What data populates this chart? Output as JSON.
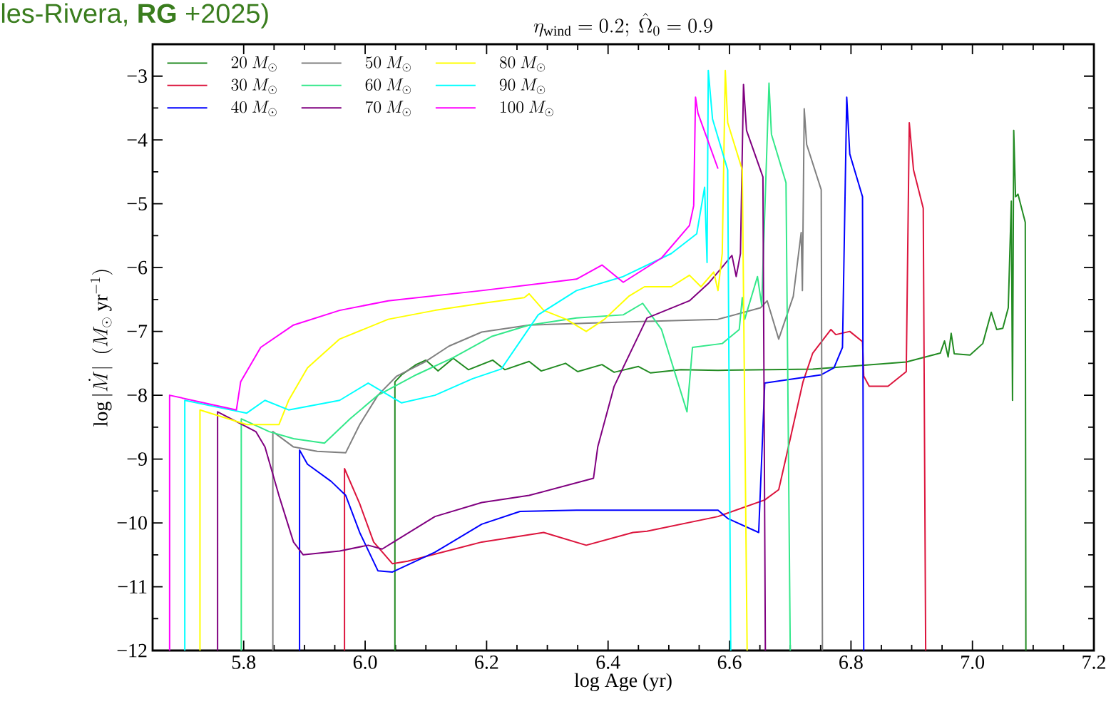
{
  "chart_data": {
    "type": "line",
    "title": "\\eta_{\\rm wind} = 0.2;\\ \\hat{\\Omega}_0 = 0.9",
    "xlabel": "log Age (yr)",
    "ylabel": "\\log|\\dot{M}|\\ \\ (M_\\odot\\ {\\rm yr}^{-1})",
    "annotations": [
      "les-Rivera, **RG** +2025)"
    ],
    "legend": "top left",
    "xlim": [
      5.65,
      7.2
    ],
    "ylim": [
      -12,
      -2.5
    ],
    "xticks": [
      {
        "value": 5.8,
        "label": "5.8"
      },
      {
        "value": 6,
        "label": "6.0"
      },
      {
        "value": 6.2,
        "label": "6.2"
      },
      {
        "value": 6.4,
        "label": "6.4"
      },
      {
        "value": 6.6,
        "label": "6.6"
      },
      {
        "value": 6.8,
        "label": "6.8"
      },
      {
        "value": 7,
        "label": "7.0"
      },
      {
        "value": 7.2,
        "label": "7.2"
      }
    ],
    "yticks": [
      {
        "value": -12,
        "label": "−12"
      },
      {
        "value": -11,
        "label": "−11"
      },
      {
        "value": -10,
        "label": "−10"
      },
      {
        "value": -9,
        "label": "−9"
      },
      {
        "value": -8,
        "label": "−8"
      },
      {
        "value": -7,
        "label": "−7"
      },
      {
        "value": -6,
        "label": "−6"
      },
      {
        "value": -5,
        "label": "−5"
      },
      {
        "value": -4,
        "label": "−4"
      },
      {
        "value": -3,
        "label": "−3"
      }
    ],
    "series": [
      {
        "name": "20\\ M_\\odot",
        "color": "#228b22",
        "x": [
          6.049,
          6.049,
          6.06,
          6.084,
          6.1,
          6.12,
          6.145,
          6.17,
          6.21,
          6.23,
          6.27,
          6.29,
          6.33,
          6.35,
          6.39,
          6.41,
          6.45,
          6.47,
          6.52,
          6.581,
          6.737,
          6.891,
          6.947,
          6.954,
          6.96,
          6.965,
          6.97,
          6.996,
          7.017,
          7.031,
          7.04,
          7.05,
          7.059,
          7.064,
          7.066,
          7.068,
          7.071,
          7.075,
          7.087,
          7.088
        ],
        "values": [
          -12,
          -7.79,
          -7.68,
          -7.52,
          -7.45,
          -7.62,
          -7.42,
          -7.6,
          -7.45,
          -7.6,
          -7.47,
          -7.62,
          -7.5,
          -7.63,
          -7.52,
          -7.64,
          -7.55,
          -7.65,
          -7.6,
          -7.61,
          -7.59,
          -7.48,
          -7.34,
          -7.15,
          -7.4,
          -7.03,
          -7.35,
          -7.37,
          -7.19,
          -6.7,
          -6.97,
          -6.95,
          -6.63,
          -4.96,
          -8.08,
          -3.85,
          -4.89,
          -4.85,
          -5.29,
          -12
        ]
      },
      {
        "name": "30\\ M_\\odot",
        "color": "#dc143c",
        "x": [
          5.966,
          5.966,
          5.991,
          6.014,
          6.045,
          6.07,
          6.192,
          6.294,
          6.364,
          6.441,
          6.464,
          6.581,
          6.658,
          6.681,
          6.697,
          6.721,
          6.737,
          6.767,
          6.775,
          6.798,
          6.819,
          6.821,
          6.83,
          6.861,
          6.891,
          6.896,
          6.903,
          6.919,
          6.923
        ],
        "values": [
          -12,
          -9.15,
          -9.7,
          -10.3,
          -10.64,
          -10.6,
          -10.3,
          -10.15,
          -10.35,
          -10.15,
          -10.13,
          -9.9,
          -9.64,
          -9.48,
          -8.81,
          -7.79,
          -7.34,
          -6.97,
          -7.05,
          -7.0,
          -7.16,
          -7.7,
          -7.86,
          -7.86,
          -7.63,
          -3.73,
          -4.47,
          -5.07,
          -12
        ]
      },
      {
        "name": "40\\ M_\\odot",
        "color": "#0000ff",
        "x": [
          5.892,
          5.892,
          5.905,
          5.944,
          5.968,
          5.991,
          6.021,
          6.045,
          6.115,
          6.192,
          6.255,
          6.348,
          6.581,
          6.597,
          6.648,
          6.658,
          6.751,
          6.772,
          6.786,
          6.793,
          6.798,
          6.819,
          6.821
        ],
        "values": [
          -12,
          -8.86,
          -9.08,
          -9.35,
          -9.57,
          -10.15,
          -10.75,
          -10.77,
          -10.46,
          -10.02,
          -9.82,
          -9.8,
          -9.8,
          -9.93,
          -10.15,
          -7.81,
          -7.68,
          -7.57,
          -7.25,
          -3.33,
          -4.22,
          -4.89,
          -12
        ]
      },
      {
        "name": "50\\ M_\\odot",
        "color": "#808080",
        "x": [
          5.848,
          5.848,
          5.882,
          5.921,
          5.968,
          5.991,
          6.021,
          6.052,
          6.098,
          6.138,
          6.192,
          6.27,
          6.434,
          6.581,
          6.651,
          6.662,
          6.681,
          6.705,
          6.718,
          6.72,
          6.723,
          6.727,
          6.751,
          6.753
        ],
        "values": [
          -12,
          -8.57,
          -8.81,
          -8.88,
          -8.9,
          -8.46,
          -8.0,
          -7.7,
          -7.48,
          -7.23,
          -7.01,
          -6.9,
          -6.85,
          -6.81,
          -6.63,
          -6.52,
          -7.12,
          -6.45,
          -5.45,
          -6.36,
          -3.51,
          -4.07,
          -4.78,
          -12
        ]
      },
      {
        "name": "60\\ M_\\odot",
        "color": "#33e88a",
        "x": [
          5.796,
          5.796,
          5.842,
          5.882,
          5.933,
          5.975,
          6.021,
          6.084,
          6.145,
          6.208,
          6.27,
          6.348,
          6.425,
          6.457,
          6.488,
          6.53,
          6.539,
          6.588,
          6.616,
          6.621,
          6.625,
          6.646,
          6.653,
          6.665,
          6.669,
          6.693,
          6.7
        ],
        "values": [
          -12,
          -8.37,
          -8.57,
          -8.68,
          -8.75,
          -8.37,
          -8.0,
          -7.68,
          -7.41,
          -7.08,
          -6.9,
          -6.79,
          -6.74,
          -6.56,
          -6.97,
          -8.26,
          -7.25,
          -7.19,
          -6.97,
          -6.47,
          -6.81,
          -6.14,
          -6.59,
          -3.11,
          -3.91,
          -4.67,
          -12
        ]
      },
      {
        "name": "70\\ M_\\odot",
        "color": "#800080",
        "x": [
          5.757,
          5.757,
          5.82,
          5.835,
          5.858,
          5.882,
          5.898,
          5.958,
          6.005,
          6.028,
          6.115,
          6.192,
          6.27,
          6.376,
          6.383,
          6.41,
          6.464,
          6.534,
          6.565,
          6.604,
          6.611,
          6.618,
          6.623,
          6.628,
          6.655,
          6.659
        ],
        "values": [
          -12,
          -8.26,
          -8.57,
          -8.81,
          -9.57,
          -10.3,
          -10.5,
          -10.44,
          -10.35,
          -10.41,
          -9.9,
          -9.68,
          -9.57,
          -9.3,
          -8.81,
          -7.86,
          -6.79,
          -6.52,
          -6.25,
          -5.81,
          -6.14,
          -5.78,
          -3.13,
          -3.85,
          -4.58,
          -12
        ]
      },
      {
        "name": "80\\ M_\\odot",
        "color": "#ffff00",
        "x": [
          5.728,
          5.728,
          5.805,
          5.858,
          5.874,
          5.905,
          5.958,
          6.038,
          6.115,
          6.192,
          6.262,
          6.27,
          6.294,
          6.331,
          6.364,
          6.394,
          6.434,
          6.46,
          6.504,
          6.534,
          6.553,
          6.574,
          6.581,
          6.588,
          6.593,
          6.597,
          6.621,
          6.629
        ],
        "values": [
          -12,
          -8.23,
          -8.46,
          -8.46,
          -8.08,
          -7.57,
          -7.12,
          -6.81,
          -6.67,
          -6.56,
          -6.47,
          -6.41,
          -6.67,
          -6.81,
          -7.0,
          -6.81,
          -6.45,
          -6.3,
          -6.3,
          -6.12,
          -6.3,
          -6.07,
          -6.36,
          -5.78,
          -2.91,
          -3.73,
          -4.47,
          -12
        ]
      },
      {
        "name": "90\\ M_\\odot",
        "color": "#00ffff",
        "x": [
          5.703,
          5.703,
          5.805,
          5.835,
          5.874,
          5.958,
          6.005,
          6.06,
          6.115,
          6.177,
          6.224,
          6.285,
          6.348,
          6.425,
          6.504,
          6.546,
          6.559,
          6.563,
          6.565,
          6.572,
          6.597,
          6.602
        ],
        "values": [
          -12,
          -8.08,
          -8.28,
          -8.08,
          -8.23,
          -8.08,
          -7.81,
          -8.12,
          -8.0,
          -7.74,
          -7.59,
          -6.74,
          -6.36,
          -6.14,
          -5.78,
          -5.47,
          -4.74,
          -5.92,
          -2.91,
          -3.67,
          -4.47,
          -12
        ]
      },
      {
        "name": "100\\ M_\\odot",
        "color": "#ff00ff",
        "x": [
          5.678,
          5.678,
          5.788,
          5.795,
          5.828,
          5.882,
          5.958,
          6.038,
          6.192,
          6.348,
          6.39,
          6.425,
          6.488,
          6.534,
          6.541,
          6.544,
          6.548,
          6.581
        ],
        "values": [
          -12,
          -8.0,
          -8.23,
          -7.79,
          -7.25,
          -6.9,
          -6.67,
          -6.52,
          -6.36,
          -6.18,
          -5.96,
          -6.23,
          -5.85,
          -5.34,
          -5.03,
          -3.33,
          -3.58,
          -4.45
        ]
      }
    ]
  }
}
